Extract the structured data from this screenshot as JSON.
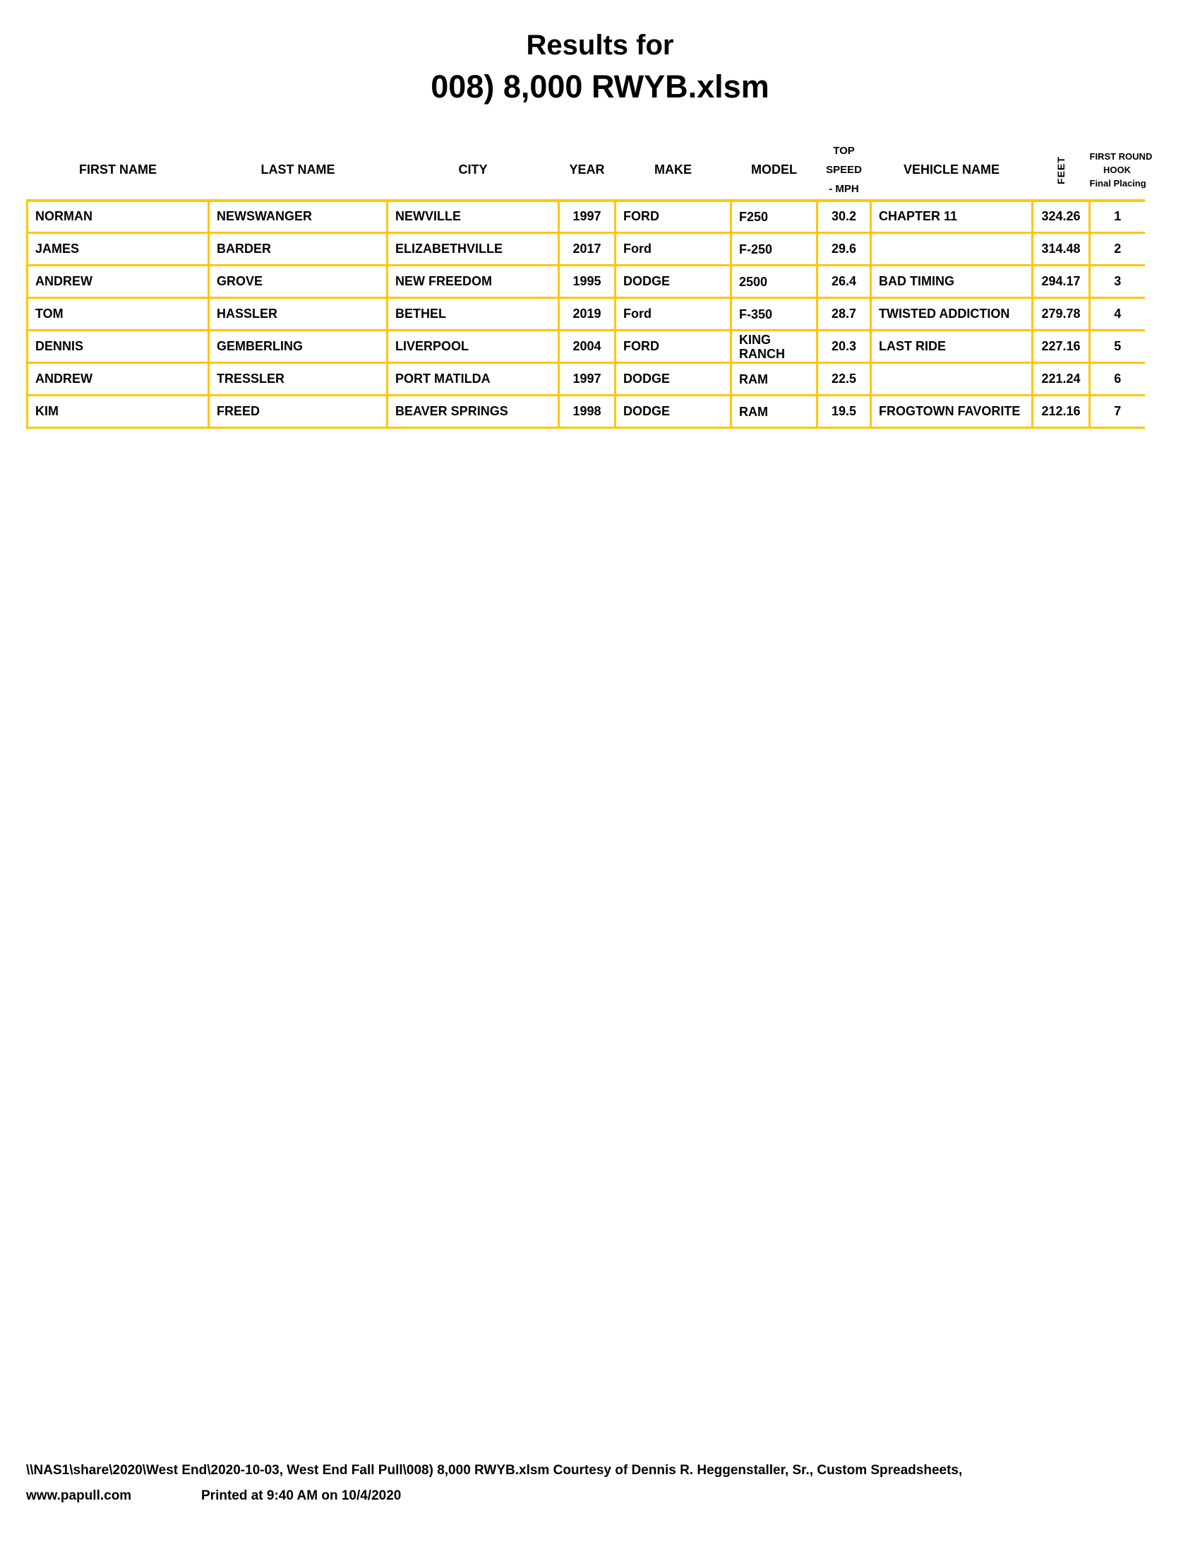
{
  "title": {
    "line1": "Results for",
    "line2": "008) 8,000 RWYB.xlsm"
  },
  "colors": {
    "table_border": "#FFC60A",
    "text": "#000000",
    "background": "#FFFFFF"
  },
  "table": {
    "headers": {
      "first_name": "FIRST NAME",
      "last_name": "LAST NAME",
      "city": "CITY",
      "year": "YEAR",
      "make": "MAKE",
      "model": "MODEL",
      "top_speed_line1": "TOP",
      "top_speed_line2": "SPEED",
      "top_speed_line3": "- MPH",
      "vehicle_name": "VEHICLE NAME",
      "feet": "FEET",
      "placing_line1": "FIRST ROUND",
      "placing_line2": "HOOK",
      "placing_line3": "Final Placing"
    },
    "rows": [
      {
        "first_name": "NORMAN",
        "last_name": "NEWSWANGER",
        "city": "NEWVILLE",
        "year": "1997",
        "make": "FORD",
        "model": "F250",
        "top_speed": "30.2",
        "vehicle_name": "CHAPTER 11",
        "feet": "324.26",
        "placing": "1"
      },
      {
        "first_name": "JAMES",
        "last_name": "BARDER",
        "city": "ELIZABETHVILLE",
        "year": "2017",
        "make": "Ford",
        "model": "F-250",
        "top_speed": "29.6",
        "vehicle_name": "",
        "feet": "314.48",
        "placing": "2"
      },
      {
        "first_name": "ANDREW",
        "last_name": "GROVE",
        "city": "NEW FREEDOM",
        "year": "1995",
        "make": "DODGE",
        "model": "2500",
        "top_speed": "26.4",
        "vehicle_name": "BAD TIMING",
        "feet": "294.17",
        "placing": "3"
      },
      {
        "first_name": "TOM",
        "last_name": "HASSLER",
        "city": "BETHEL",
        "year": "2019",
        "make": "Ford",
        "model": "F-350",
        "top_speed": "28.7",
        "vehicle_name": "TWISTED ADDICTION",
        "feet": "279.78",
        "placing": "4"
      },
      {
        "first_name": "DENNIS",
        "last_name": "GEMBERLING",
        "city": "LIVERPOOL",
        "year": "2004",
        "make": "FORD",
        "model": "KING RANCH",
        "top_speed": "20.3",
        "vehicle_name": "LAST RIDE",
        "feet": "227.16",
        "placing": "5"
      },
      {
        "first_name": "ANDREW",
        "last_name": "TRESSLER",
        "city": "PORT MATILDA",
        "year": "1997",
        "make": "DODGE",
        "model": "RAM",
        "top_speed": "22.5",
        "vehicle_name": "",
        "feet": "221.24",
        "placing": "6"
      },
      {
        "first_name": "KIM",
        "last_name": "FREED",
        "city": "BEAVER SPRINGS",
        "year": "1998",
        "make": "DODGE",
        "model": "RAM",
        "top_speed": "19.5",
        "vehicle_name": "FROGTOWN FAVORITE",
        "feet": "212.16",
        "placing": "7"
      }
    ]
  },
  "footer": {
    "line1": "\\\\NAS1\\share\\2020\\West End\\2020-10-03, West End Fall Pull\\008) 8,000 RWYB.xlsm  Courtesy of Dennis R. Heggenstaller, Sr., Custom Spreadsheets,",
    "line2_left": "www.papull.com",
    "line2_right": "Printed at 9:40 AM on 10/4/2020"
  }
}
